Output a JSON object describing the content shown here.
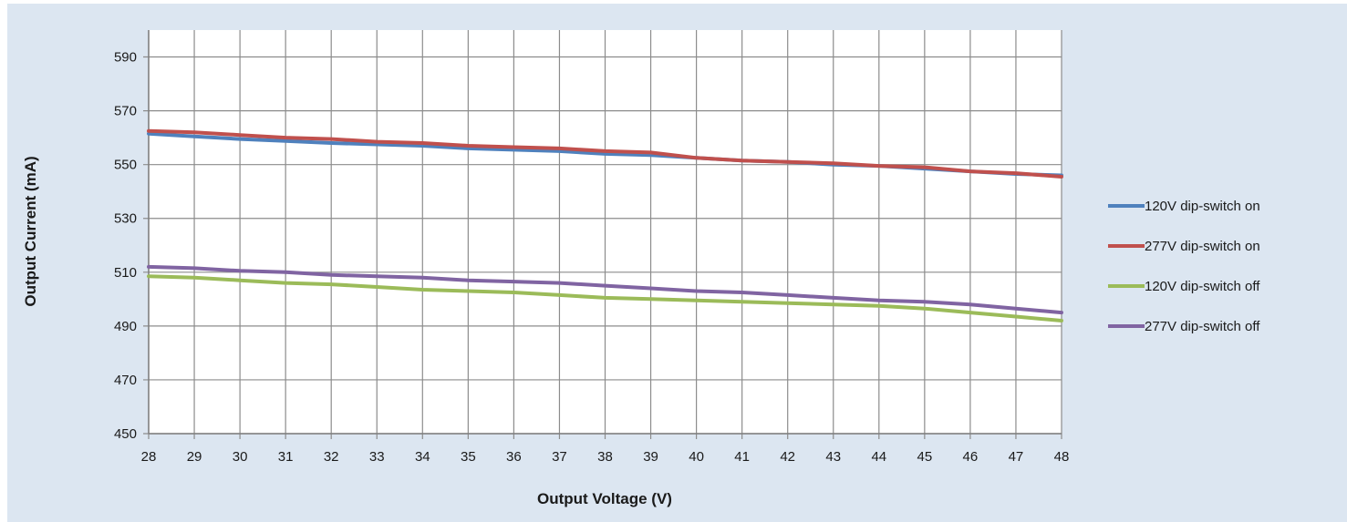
{
  "chart_data": {
    "type": "line",
    "title": "",
    "xlabel": "Output Voltage (V)",
    "ylabel": "Output Current (mA)",
    "xlim": [
      28,
      48
    ],
    "ylim": [
      450,
      600
    ],
    "x_ticks": [
      28,
      29,
      30,
      31,
      32,
      33,
      34,
      35,
      36,
      37,
      38,
      39,
      40,
      41,
      42,
      43,
      44,
      45,
      46,
      47,
      48
    ],
    "y_ticks": [
      450,
      470,
      490,
      510,
      530,
      550,
      570,
      590
    ],
    "grid": true,
    "legend_position": "right",
    "x": [
      28,
      29,
      30,
      31,
      32,
      33,
      34,
      35,
      36,
      37,
      38,
      39,
      40,
      41,
      42,
      43,
      44,
      45,
      46,
      47,
      48
    ],
    "series": [
      {
        "name": "120V dip-switch on",
        "color": "#4f81bd",
        "values": [
          561.5,
          560.5,
          559.5,
          558.8,
          558,
          557.5,
          557,
          556,
          555.5,
          555,
          554,
          553.5,
          552.5,
          551.5,
          551,
          550,
          549.5,
          548.5,
          547.5,
          546.5,
          546
        ]
      },
      {
        "name": "277V dip-switch on",
        "color": "#c0504d",
        "values": [
          562.5,
          562,
          561,
          560,
          559.5,
          558.5,
          558,
          557,
          556.5,
          556,
          555,
          554.5,
          552.5,
          551.5,
          551,
          550.5,
          549.5,
          549,
          547.5,
          546.8,
          545.5
        ]
      },
      {
        "name": "120V dip-switch off",
        "color": "#9bbb59",
        "values": [
          508.5,
          508,
          507,
          506,
          505.5,
          504.5,
          503.5,
          503,
          502.5,
          501.5,
          500.5,
          500,
          499.5,
          499,
          498.5,
          498,
          497.5,
          496.5,
          495,
          493.5,
          492
        ]
      },
      {
        "name": "277V dip-switch off",
        "color": "#8064a2",
        "values": [
          512,
          511.5,
          510.5,
          510,
          509,
          508.5,
          508,
          507,
          506.5,
          506,
          505,
          504,
          503,
          502.5,
          501.5,
          500.5,
          499.5,
          499,
          498,
          496.5,
          495
        ]
      }
    ]
  }
}
